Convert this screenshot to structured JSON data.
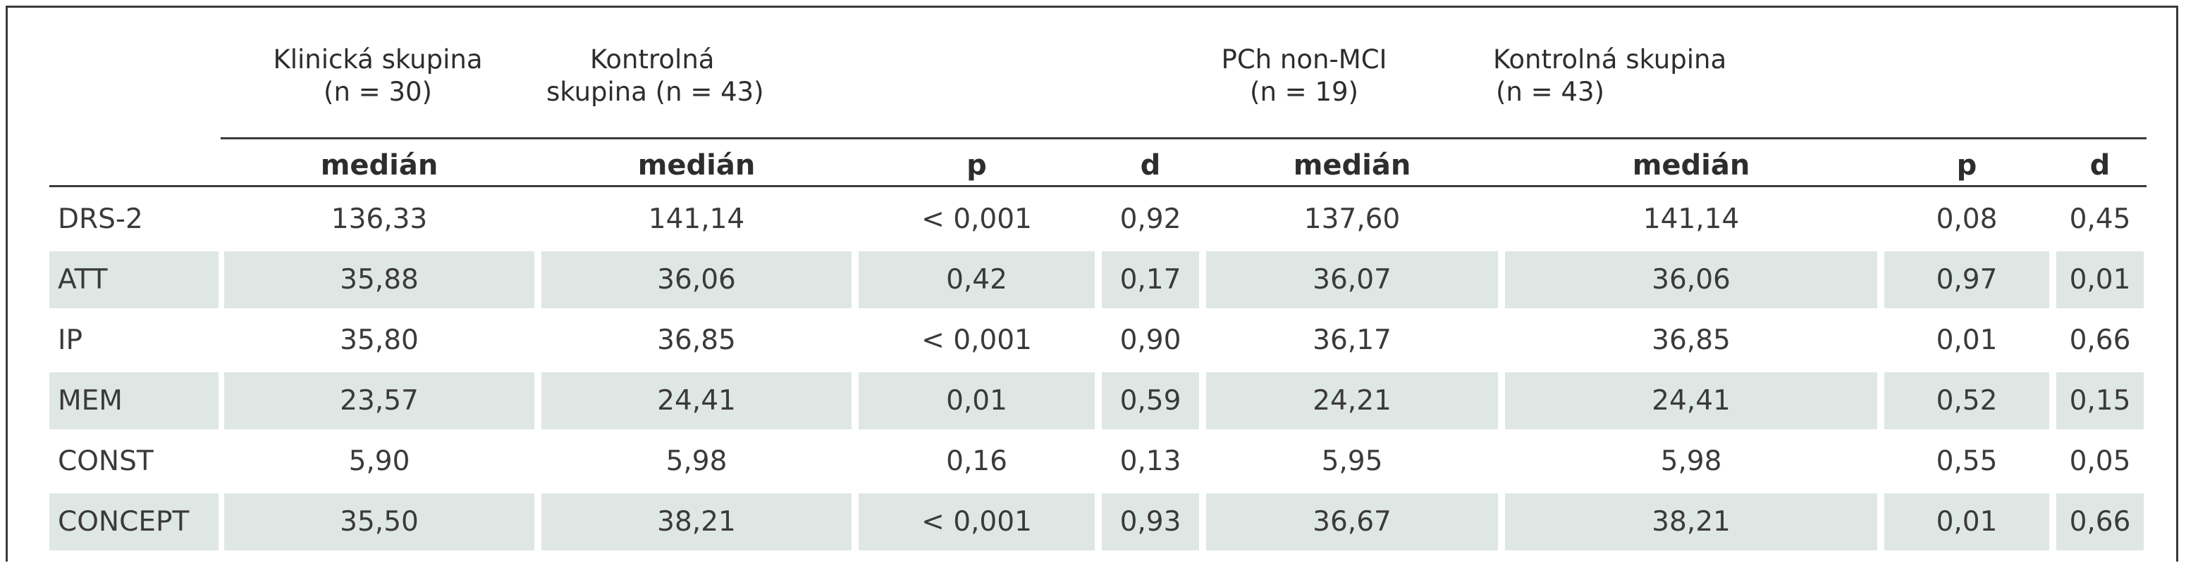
{
  "groups": {
    "klinicka": [
      "Klinická skupina",
      "(n = 30)"
    ],
    "kontrolna1": [
      "Kontrolná",
      "skupina (n = 43)"
    ],
    "pch": [
      "PCh non-MCI",
      "(n = 19)"
    ],
    "kontrolna2": [
      "Kontrolná skupina",
      "(n = 43)"
    ]
  },
  "subheaders": [
    "medián",
    "medián",
    "p",
    "d",
    "medián",
    "medián",
    "p",
    "d"
  ],
  "rows": [
    [
      "DRS-2",
      "136,33",
      "141,14",
      "< 0,001",
      "0,92",
      "137,60",
      "141,14",
      "0,08",
      "0,45"
    ],
    [
      "ATT",
      "35,88",
      "36,06",
      "0,42",
      "0,17",
      "36,07",
      "36,06",
      "0,97",
      "0,01"
    ],
    [
      "IP",
      "35,80",
      "36,85",
      "< 0,001",
      "0,90",
      "36,17",
      "36,85",
      "0,01",
      "0,66"
    ],
    [
      "MEM",
      "23,57",
      "24,41",
      "0,01",
      "0,59",
      "24,21",
      "24,41",
      "0,52",
      "0,15"
    ],
    [
      "CONST",
      "5,90",
      "5,98",
      "0,16",
      "0,13",
      "5,95",
      "5,98",
      "0,55",
      "0,05"
    ],
    [
      "CONCEPT",
      "35,50",
      "38,21",
      "< 0,001",
      "0,93",
      "36,67",
      "38,21",
      "0,01",
      "0,66"
    ]
  ]
}
